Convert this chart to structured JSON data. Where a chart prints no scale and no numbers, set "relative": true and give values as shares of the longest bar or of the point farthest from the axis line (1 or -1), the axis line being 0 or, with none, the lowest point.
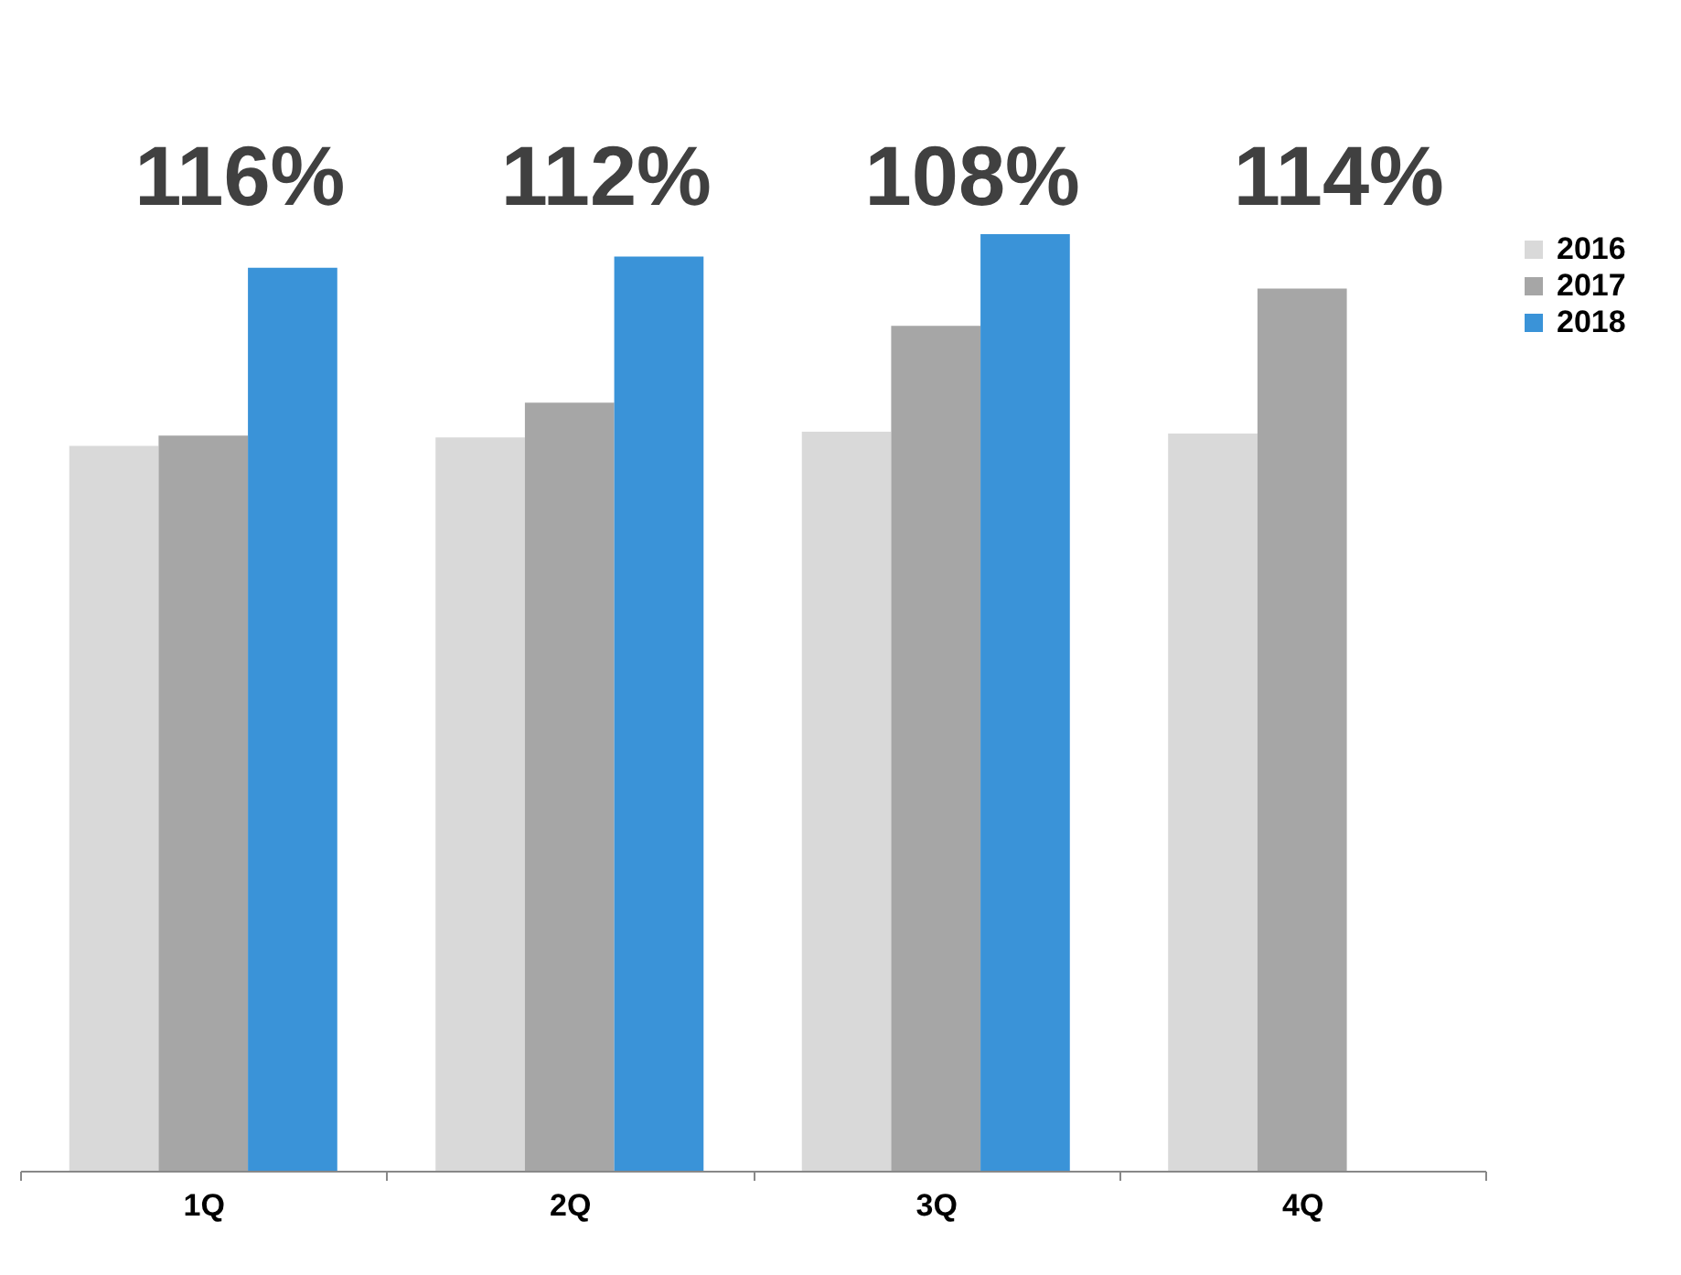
{
  "chart_data": {
    "type": "bar",
    "relative": true,
    "categories": [
      "1Q",
      "2Q",
      "3Q",
      "4Q"
    ],
    "series": [
      {
        "name": "2016",
        "color": "#d9d9d9",
        "values": [
          0.774,
          0.783,
          0.789,
          0.787
        ]
      },
      {
        "name": "2017",
        "color": "#a6a6a6",
        "values": [
          0.785,
          0.82,
          0.902,
          0.942
        ]
      },
      {
        "name": "2018",
        "color": "#3a93d8",
        "values": [
          0.964,
          0.976,
          1,
          null
        ]
      }
    ],
    "annotations": [
      "116%",
      "112%",
      "108%",
      "114%"
    ],
    "legend": "right",
    "grid": false
  }
}
